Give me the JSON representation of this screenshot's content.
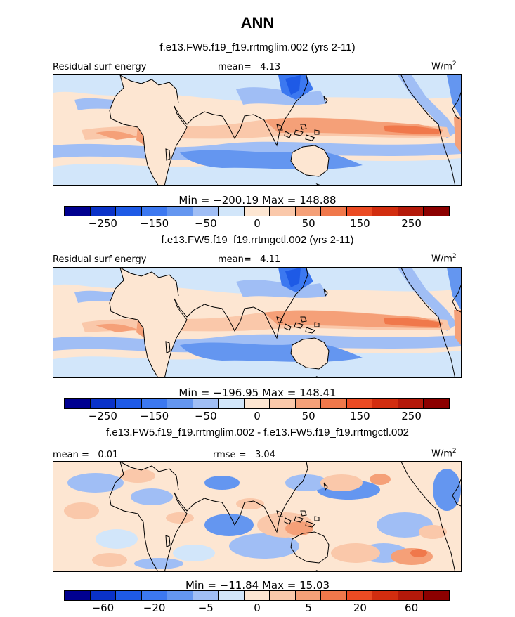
{
  "title": "ANN",
  "colors": [
    "#000090",
    "#0a32c8",
    "#1e5ae6",
    "#3c78f0",
    "#6496f0",
    "#a0bef5",
    "#d2e6fa",
    "#fde6d2",
    "#fac8aa",
    "#f5a078",
    "#f0784b",
    "#eb4b23",
    "#d22d0f",
    "#b4190a",
    "#8c0000"
  ],
  "panels": [
    {
      "title": "f.e13.FW5.f19_f19.rrtmglim.002 (yrs 2-11)",
      "left_label": "Residual surf energy",
      "stat1_label": "mean=",
      "stat1_value": "4.13",
      "units": "W/m",
      "units_sup": "2",
      "min_label": "Min =",
      "min_value": "−200.19",
      "max_label": "Max =",
      "max_value": "148.88",
      "ticks": [
        "−250",
        "−150",
        "−50",
        "0",
        "50",
        "150",
        "250"
      ]
    },
    {
      "title": "f.e13.FW5.f19_f19.rrtmgctl.002 (yrs 2-11)",
      "left_label": "Residual surf energy",
      "stat1_label": "mean=",
      "stat1_value": "4.11",
      "units": "W/m",
      "units_sup": "2",
      "min_label": "Min =",
      "min_value": "−196.95",
      "max_label": "Max =",
      "max_value": "148.41",
      "ticks": [
        "−250",
        "−150",
        "−50",
        "0",
        "50",
        "150",
        "250"
      ]
    },
    {
      "title": "f.e13.FW5.f19_f19.rrtmglim.002 - f.e13.FW5.f19_f19.rrtmgctl.002",
      "left_label": "mean =",
      "left_value": "0.01",
      "stat1_label": "rmse =",
      "stat1_value": "3.04",
      "units": "W/m",
      "units_sup": "2",
      "min_label": "Min =",
      "min_value": "−11.84",
      "max_label": "Max =",
      "max_value": "15.03",
      "ticks": [
        "−60",
        "−20",
        "−5",
        "0",
        "5",
        "20",
        "60"
      ]
    }
  ]
}
